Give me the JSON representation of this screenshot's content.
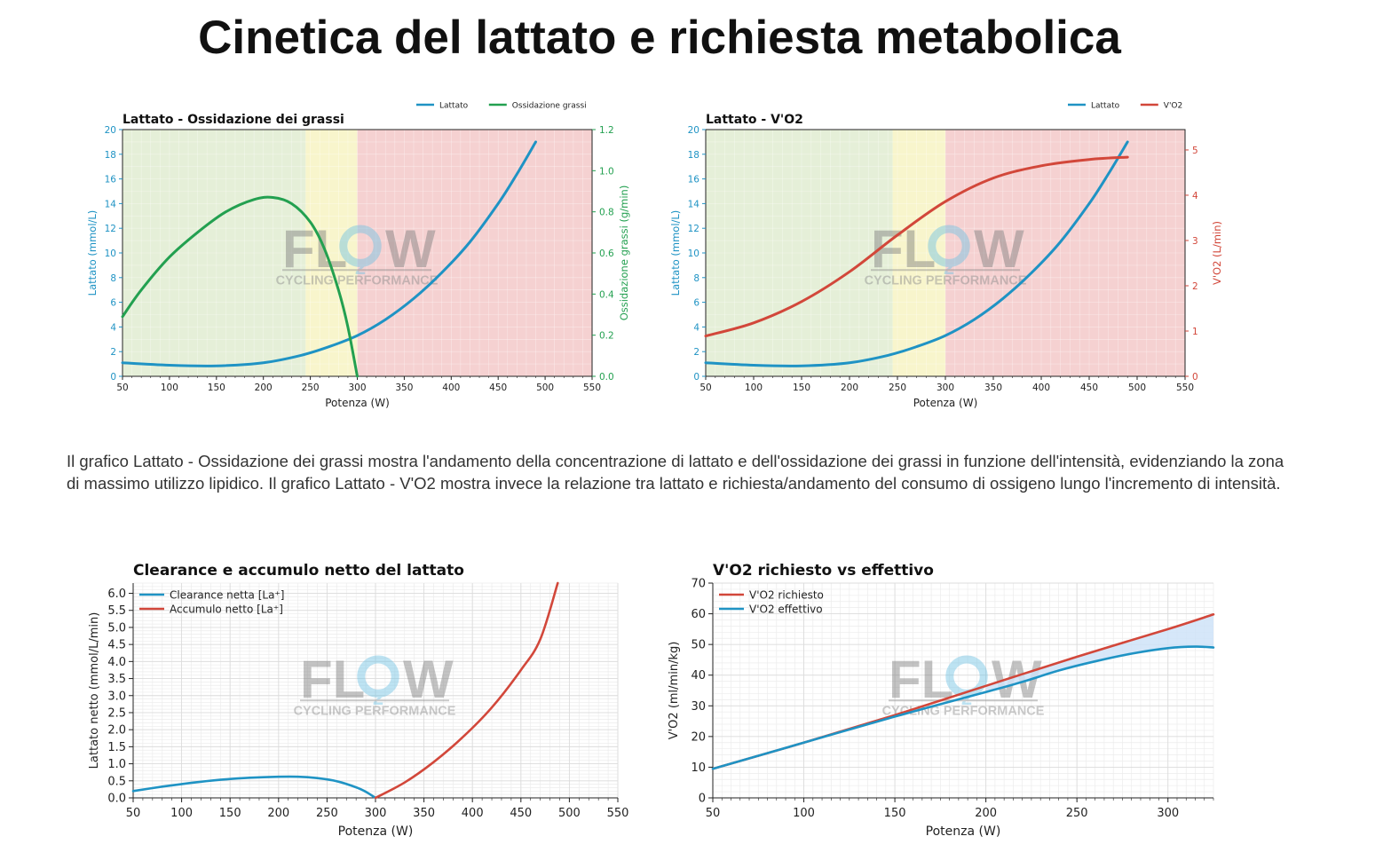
{
  "page": {
    "title": "Cinetica del lattato e richiesta metabolica",
    "description": "Il grafico Lattato - Ossidazione dei grassi mostra l'andamento della concentrazione di lattato e dell'ossidazione dei grassi in funzione dell'intensità, evidenziando la zona di massimo utilizzo lipidico. Il grafico Lattato - V'O2 mostra invece la relazione tra lattato e richiesta/andamento del consumo di ossigeno lungo l'incremento di intensità.",
    "watermark": {
      "logo_text": "FLO2W",
      "tagline": "CYCLING PERFORMANCE"
    }
  },
  "colors": {
    "lattato": "#1f93c4",
    "fat": "#23a050",
    "vo2": "#d2473a",
    "zone_green": "#e5efd8",
    "zone_yellow": "#f8f5cc",
    "zone_red": "#f5d1d1",
    "fill_blue": "#cfe3f8"
  },
  "chart_data": [
    {
      "type": "line",
      "title": "Lattato - Ossidazione dei grassi",
      "xlabel": "Potenza (W)",
      "ylabel": "Lattato (mmol/L)",
      "y2label": "Ossidazione grassi (g/min)",
      "xlim": [
        50,
        550
      ],
      "ylim": [
        0,
        20
      ],
      "y2lim": [
        0,
        1.2
      ],
      "xticks": [
        50,
        100,
        150,
        200,
        250,
        300,
        350,
        400,
        450,
        500,
        550
      ],
      "yticks": [
        0,
        2,
        4,
        6,
        8,
        10,
        12,
        14,
        16,
        18,
        20
      ],
      "y2ticks": [
        "0.0",
        "0.2",
        "0.4",
        "0.6",
        "0.8",
        "1.0",
        "1.2"
      ],
      "zones": [
        {
          "from": 50,
          "to": 245,
          "color": "green"
        },
        {
          "from": 245,
          "to": 300,
          "color": "yellow"
        },
        {
          "from": 300,
          "to": 550,
          "color": "red"
        }
      ],
      "legend": [
        "Lattato",
        "Ossidazione grassi"
      ],
      "legend_position": "top-right",
      "series": [
        {
          "name": "Lattato",
          "axis": "left",
          "x": [
            50,
            100,
            150,
            200,
            240,
            270,
            300,
            330,
            360,
            390,
            420,
            450,
            470,
            490
          ],
          "y": [
            1.1,
            0.9,
            0.85,
            1.1,
            1.7,
            2.4,
            3.3,
            4.6,
            6.3,
            8.4,
            10.9,
            14.0,
            16.4,
            19.0
          ]
        },
        {
          "name": "Ossidazione grassi",
          "axis": "right",
          "x": [
            50,
            70,
            100,
            130,
            160,
            190,
            210,
            230,
            250,
            265,
            280,
            290,
            300
          ],
          "y": [
            0.29,
            0.42,
            0.58,
            0.7,
            0.8,
            0.86,
            0.87,
            0.84,
            0.75,
            0.62,
            0.42,
            0.24,
            0.0
          ]
        }
      ]
    },
    {
      "type": "line",
      "title": "Lattato - V'O2",
      "xlabel": "Potenza (W)",
      "ylabel": "Lattato (mmol/L)",
      "y2label": "V'O2 (L/min)",
      "xlim": [
        50,
        550
      ],
      "ylim": [
        0,
        20
      ],
      "y2lim": [
        0,
        5.45
      ],
      "xticks": [
        50,
        100,
        150,
        200,
        250,
        300,
        350,
        400,
        450,
        500,
        550
      ],
      "yticks": [
        0,
        2,
        4,
        6,
        8,
        10,
        12,
        14,
        16,
        18,
        20
      ],
      "y2ticks": [
        0,
        1,
        2,
        3,
        4,
        5
      ],
      "zones": [
        {
          "from": 50,
          "to": 245,
          "color": "green"
        },
        {
          "from": 245,
          "to": 300,
          "color": "yellow"
        },
        {
          "from": 300,
          "to": 550,
          "color": "red"
        }
      ],
      "legend": [
        "Lattato",
        "V'O2"
      ],
      "legend_position": "top-right",
      "series": [
        {
          "name": "Lattato",
          "axis": "left",
          "x": [
            50,
            100,
            150,
            200,
            240,
            270,
            300,
            330,
            360,
            390,
            420,
            450,
            470,
            490
          ],
          "y": [
            1.1,
            0.9,
            0.85,
            1.1,
            1.7,
            2.4,
            3.3,
            4.6,
            6.3,
            8.4,
            10.9,
            14.0,
            16.4,
            19.0
          ]
        },
        {
          "name": "V'O2",
          "axis": "right",
          "x": [
            50,
            100,
            150,
            200,
            250,
            300,
            350,
            400,
            450,
            490
          ],
          "y": [
            0.89,
            1.18,
            1.65,
            2.31,
            3.12,
            3.86,
            4.38,
            4.65,
            4.79,
            4.84
          ]
        }
      ]
    },
    {
      "type": "line",
      "title": "Clearance e accumulo netto del lattato",
      "xlabel": "Potenza (W)",
      "ylabel": "Lattato netto (mmol/L/min)",
      "xlim": [
        50,
        550
      ],
      "ylim": [
        0,
        6.3
      ],
      "xticks": [
        50,
        100,
        150,
        200,
        250,
        300,
        350,
        400,
        450,
        500,
        550
      ],
      "yticks": [
        "0.0",
        "0.5",
        "1.0",
        "1.5",
        "2.0",
        "2.5",
        "3.0",
        "3.5",
        "4.0",
        "4.5",
        "5.0",
        "5.5",
        "6.0"
      ],
      "legend": [
        "Clearance netta [La⁺]",
        "Accumulo netto [La⁺]"
      ],
      "legend_position": "top-left",
      "series": [
        {
          "name": "Clearance netta [La⁺]",
          "x": [
            50,
            80,
            110,
            140,
            170,
            200,
            220,
            240,
            260,
            280,
            290,
            300
          ],
          "y": [
            0.2,
            0.33,
            0.44,
            0.53,
            0.59,
            0.62,
            0.62,
            0.58,
            0.49,
            0.31,
            0.18,
            0.0
          ]
        },
        {
          "name": "Accumulo netto [La⁺]",
          "x": [
            300,
            330,
            360,
            390,
            420,
            450,
            470,
            488
          ],
          "y": [
            0.0,
            0.45,
            1.05,
            1.78,
            2.65,
            3.75,
            4.65,
            6.3
          ]
        }
      ]
    },
    {
      "type": "line",
      "title": "V'O2 richiesto vs effettivo",
      "xlabel": "Potenza (W)",
      "ylabel": "V'O2 (ml/min/kg)",
      "xlim": [
        50,
        325
      ],
      "ylim": [
        0,
        70
      ],
      "xticks": [
        50,
        100,
        150,
        200,
        250,
        300
      ],
      "yticks": [
        0,
        10,
        20,
        30,
        40,
        50,
        60,
        70
      ],
      "legend": [
        "V'O2 richiesto",
        "V'O2 effettivo"
      ],
      "legend_position": "top-left",
      "series": [
        {
          "name": "V'O2 richiesto",
          "x": [
            50,
            100,
            150,
            200,
            250,
            300,
            325
          ],
          "y": [
            9.5,
            18.0,
            27.0,
            36.5,
            46.0,
            55.0,
            59.8
          ]
        },
        {
          "name": "V'O2 effettivo",
          "x": [
            50,
            100,
            150,
            200,
            220,
            240,
            260,
            280,
            300,
            315,
            325
          ],
          "y": [
            9.5,
            18.0,
            26.5,
            34.5,
            37.8,
            41.5,
            44.5,
            47.0,
            48.8,
            49.3,
            49.0
          ]
        }
      ]
    }
  ]
}
